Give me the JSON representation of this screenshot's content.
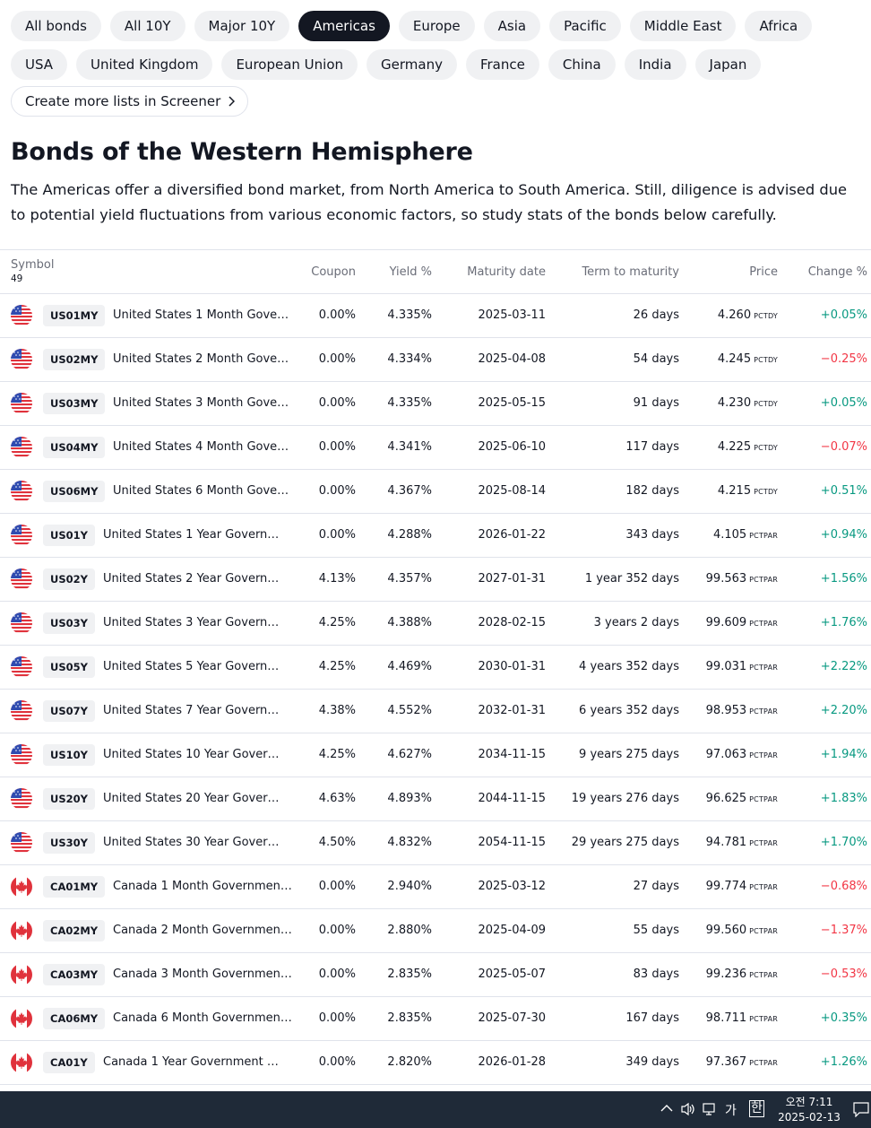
{
  "tabs": {
    "items": [
      "All bonds",
      "All 10Y",
      "Major 10Y",
      "Americas",
      "Europe",
      "Asia",
      "Pacific",
      "Middle East",
      "Africa",
      "USA",
      "United Kingdom",
      "European Union",
      "Germany",
      "France",
      "China",
      "India",
      "Japan"
    ],
    "active": 3
  },
  "screener_link": "Create more lists in Screener",
  "header": {
    "title": "Bonds of the Western Hemisphere",
    "description": "The Americas offer a diversified bond market, from North America to South America. Still, diligence is advised due to potential yield fluctuations from various economic factors, so study stats of the bonds below carefully."
  },
  "table": {
    "columns": [
      "Symbol",
      "Coupon",
      "Yield %",
      "Maturity date",
      "Term to maturity",
      "Price",
      "Change %"
    ],
    "symbol_count": "49",
    "rows": [
      [
        "US01MY",
        "United States 1 Month Gove…",
        "0.00%",
        "4.335%",
        "2025-03-11",
        "26 days",
        "4.260",
        "PCTDY",
        "+0.05%"
      ],
      [
        "US02MY",
        "United States 2 Month Gove…",
        "0.00%",
        "4.334%",
        "2025-04-08",
        "54 days",
        "4.245",
        "PCTDY",
        "−0.25%"
      ],
      [
        "US03MY",
        "United States 3 Month Gove…",
        "0.00%",
        "4.335%",
        "2025-05-15",
        "91 days",
        "4.230",
        "PCTDY",
        "+0.05%"
      ],
      [
        "US04MY",
        "United States 4 Month Gove…",
        "0.00%",
        "4.341%",
        "2025-06-10",
        "117 days",
        "4.225",
        "PCTDY",
        "−0.07%"
      ],
      [
        "US06MY",
        "United States 6 Month Gove…",
        "0.00%",
        "4.367%",
        "2025-08-14",
        "182 days",
        "4.215",
        "PCTDY",
        "+0.51%"
      ],
      [
        "US01Y",
        "United States 1 Year Govern…",
        "0.00%",
        "4.288%",
        "2026-01-22",
        "343 days",
        "4.105",
        "PCTPAR",
        "+0.94%"
      ],
      [
        "US02Y",
        "United States 2 Year Govern…",
        "4.13%",
        "4.357%",
        "2027-01-31",
        "1 year 352 days",
        "99.563",
        "PCTPAR",
        "+1.56%"
      ],
      [
        "US03Y",
        "United States 3 Year Govern…",
        "4.25%",
        "4.388%",
        "2028-02-15",
        "3 years 2 days",
        "99.609",
        "PCTPAR",
        "+1.76%"
      ],
      [
        "US05Y",
        "United States 5 Year Govern…",
        "4.25%",
        "4.469%",
        "2030-01-31",
        "4 years 352 days",
        "99.031",
        "PCTPAR",
        "+2.22%"
      ],
      [
        "US07Y",
        "United States 7 Year Govern…",
        "4.38%",
        "4.552%",
        "2032-01-31",
        "6 years 352 days",
        "98.953",
        "PCTPAR",
        "+2.20%"
      ],
      [
        "US10Y",
        "United States 10 Year Gover…",
        "4.25%",
        "4.627%",
        "2034-11-15",
        "9 years 275 days",
        "97.063",
        "PCTPAR",
        "+1.94%"
      ],
      [
        "US20Y",
        "United States 20 Year Gover…",
        "4.63%",
        "4.893%",
        "2044-11-15",
        "19 years 276 days",
        "96.625",
        "PCTPAR",
        "+1.83%"
      ],
      [
        "US30Y",
        "United States 30 Year Gover…",
        "4.50%",
        "4.832%",
        "2054-11-15",
        "29 years 275 days",
        "94.781",
        "PCTPAR",
        "+1.70%"
      ],
      [
        "CA01MY",
        "Canada 1 Month Governmen…",
        "0.00%",
        "2.940%",
        "2025-03-12",
        "27 days",
        "99.774",
        "PCTPAR",
        "−0.68%"
      ],
      [
        "CA02MY",
        "Canada 2 Month Governmen…",
        "0.00%",
        "2.880%",
        "2025-04-09",
        "55 days",
        "99.560",
        "PCTPAR",
        "−1.37%"
      ],
      [
        "CA03MY",
        "Canada 3 Month Governmen…",
        "0.00%",
        "2.835%",
        "2025-05-07",
        "83 days",
        "99.236",
        "PCTPAR",
        "−0.53%"
      ],
      [
        "CA06MY",
        "Canada 6 Month Governmen…",
        "0.00%",
        "2.835%",
        "2025-07-30",
        "167 days",
        "98.711",
        "PCTPAR",
        "+0.35%"
      ],
      [
        "CA01Y",
        "Canada 1 Year Government …",
        "0.00%",
        "2.820%",
        "2026-01-28",
        "349 days",
        "97.367",
        "PCTPAR",
        "+1.26%"
      ]
    ]
  },
  "taskbar": {
    "ime_mode": "가",
    "ime_lang": "한",
    "time": "오전 7:11",
    "date": "2025-02-13"
  }
}
